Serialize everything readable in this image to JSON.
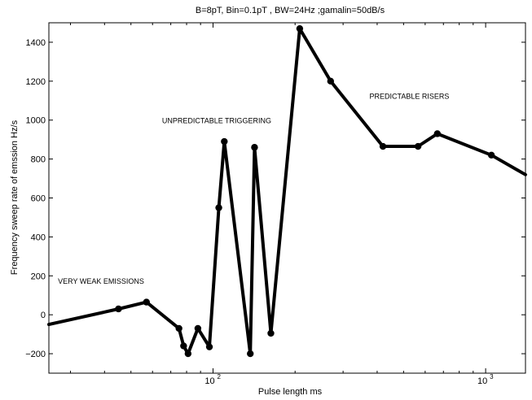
{
  "chart_data": {
    "type": "line",
    "title": "B=8pT, Bin=0.1pT , BW=24Hz ;gamalin=50dB/s",
    "xlabel": "Pulse length ms",
    "ylabel": "Frequency sweep rate of emssion Hz/s",
    "xscale": "log",
    "xlim": [
      25,
      1400
    ],
    "ylim": [
      -300,
      1500
    ],
    "grid": false,
    "legend": "none",
    "line_color": "#000000",
    "xticks": [
      {
        "value": 100,
        "base": "10",
        "exp": "2"
      },
      {
        "value": 1000,
        "base": "10",
        "exp": "3"
      }
    ],
    "yticks": [
      -200,
      0,
      200,
      400,
      600,
      800,
      1000,
      1200,
      1400
    ],
    "series": [
      {
        "x": [
          25,
          45,
          57,
          75,
          78,
          81,
          88,
          97,
          105,
          110,
          137,
          142,
          163,
          208,
          270,
          420,
          565,
          665,
          1050,
          1400
        ],
        "y": [
          -50,
          30,
          65,
          -70,
          -160,
          -200,
          -70,
          -165,
          550,
          890,
          -200,
          860,
          -95,
          1470,
          1200,
          865,
          865,
          930,
          820,
          720
        ]
      }
    ],
    "annotations": [
      {
        "text": "VERY WEAK EMISSIONS",
        "x": 27,
        "y": 160
      },
      {
        "text": "UNPREDICTABLE TRIGGERING",
        "x": 65,
        "y": 985
      },
      {
        "text": "PREDICTABLE RISERS",
        "x": 375,
        "y": 1110
      }
    ]
  }
}
